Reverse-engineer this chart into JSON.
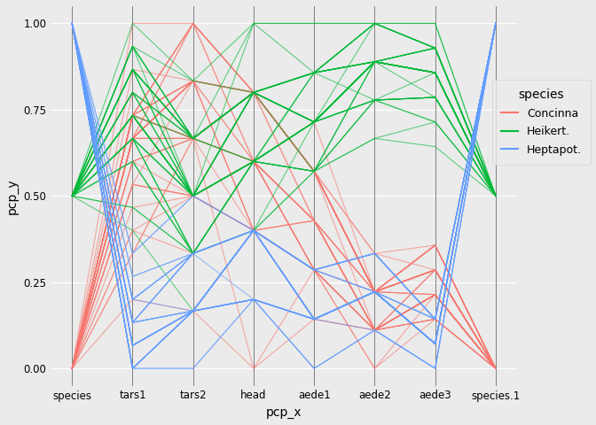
{
  "columns": [
    "species",
    "tars1",
    "tars2",
    "head",
    "aede1",
    "aede2",
    "aede3",
    "species.1"
  ],
  "species_colors": {
    "Concinna": "#F8766D",
    "Heikert.": "#00BA38",
    "Heptapot.": "#619CFF"
  },
  "species_legend": [
    "Concinna",
    "Heikert.",
    "Heptapot."
  ],
  "xlabel": "pcp_x",
  "ylabel": "pcp_y",
  "ylim": [
    -0.05,
    1.05
  ],
  "background_color": "#EBEBEB",
  "grid_color": "white",
  "alpha": 0.6,
  "linewidth": 0.8,
  "flea_data": [
    [
      "Concinna",
      131,
      53,
      33,
      50,
      14,
      18
    ],
    [
      "Concinna",
      123,
      50,
      30,
      49,
      14,
      16
    ],
    [
      "Concinna",
      125,
      53,
      30,
      50,
      13,
      17
    ],
    [
      "Concinna",
      131,
      55,
      34,
      52,
      15,
      18
    ],
    [
      "Concinna",
      135,
      55,
      34,
      53,
      15,
      18
    ],
    [
      "Concinna",
      131,
      53,
      34,
      51,
      14,
      17
    ],
    [
      "Concinna",
      130,
      55,
      33,
      50,
      14,
      16
    ],
    [
      "Concinna",
      125,
      53,
      32,
      51,
      14,
      17
    ],
    [
      "Concinna",
      133,
      54,
      34,
      52,
      16,
      19
    ],
    [
      "Concinna",
      131,
      53,
      34,
      52,
      15,
      19
    ],
    [
      "Concinna",
      132,
      53,
      34,
      52,
      15,
      19
    ],
    [
      "Concinna",
      128,
      52,
      32,
      51,
      15,
      18
    ],
    [
      "Concinna",
      130,
      55,
      33,
      51,
      14,
      18
    ],
    [
      "Concinna",
      131,
      54,
      34,
      52,
      15,
      19
    ],
    [
      "Concinna",
      127,
      52,
      33,
      51,
      14,
      17
    ],
    [
      "Concinna",
      131,
      55,
      34,
      52,
      15,
      19
    ],
    [
      "Concinna",
      129,
      53,
      33,
      50,
      15,
      17
    ],
    [
      "Concinna",
      128,
      52,
      32,
      50,
      14,
      16
    ],
    [
      "Concinna",
      126,
      51,
      32,
      50,
      13,
      16
    ],
    [
      "Concinna",
      130,
      54,
      34,
      52,
      15,
      18
    ],
    [
      "Concinna",
      130,
      54,
      34,
      52,
      14,
      18
    ],
    [
      "Concinna",
      131,
      53,
      34,
      52,
      15,
      18
    ],
    [
      "Concinna",
      129,
      53,
      33,
      51,
      14,
      17
    ],
    [
      "Concinna",
      128,
      54,
      32,
      49,
      14,
      16
    ],
    [
      "Concinna",
      130,
      54,
      32,
      50,
      14,
      17
    ],
    [
      "Concinna",
      130,
      54,
      32,
      51,
      14,
      17
    ],
    [
      "Concinna",
      131,
      55,
      34,
      52,
      15,
      18
    ],
    [
      "Concinna",
      129,
      53,
      33,
      51,
      14,
      17
    ],
    [
      "Concinna",
      130,
      53,
      33,
      51,
      15,
      17
    ],
    [
      "Concinna",
      130,
      54,
      34,
      51,
      15,
      18
    ],
    [
      "Concinna",
      130,
      54,
      34,
      52,
      15,
      18
    ],
    [
      "Concinna",
      130,
      53,
      34,
      52,
      15,
      18
    ],
    [
      "Concinna",
      131,
      54,
      34,
      52,
      16,
      18
    ],
    [
      "Concinna",
      130,
      54,
      33,
      51,
      15,
      17
    ],
    [
      "Concinna",
      131,
      54,
      34,
      52,
      15,
      19
    ],
    [
      "Concinna",
      130,
      53,
      34,
      52,
      15,
      18
    ],
    [
      "Concinna",
      131,
      55,
      34,
      52,
      15,
      19
    ],
    [
      "Concinna",
      129,
      52,
      33,
      50,
      14,
      17
    ],
    [
      "Concinna",
      128,
      52,
      32,
      50,
      14,
      17
    ],
    [
      "Concinna",
      131,
      53,
      34,
      52,
      15,
      19
    ],
    [
      "Concinna",
      126,
      52,
      32,
      50,
      14,
      17
    ],
    [
      "Concinna",
      130,
      54,
      33,
      50,
      14,
      17
    ],
    [
      "Concinna",
      131,
      54,
      34,
      52,
      15,
      18
    ],
    [
      "Concinna",
      131,
      53,
      34,
      52,
      15,
      18
    ],
    [
      "Heikert.",
      134,
      53,
      34,
      54,
      21,
      26
    ],
    [
      "Heikert.",
      127,
      51,
      33,
      52,
      19,
      23
    ],
    [
      "Heikert.",
      130,
      52,
      33,
      54,
      20,
      26
    ],
    [
      "Heikert.",
      134,
      53,
      35,
      54,
      22,
      27
    ],
    [
      "Heikert.",
      133,
      52,
      34,
      54,
      21,
      27
    ],
    [
      "Heikert.",
      131,
      52,
      34,
      52,
      21,
      25
    ],
    [
      "Heikert.",
      131,
      52,
      34,
      53,
      21,
      26
    ],
    [
      "Heikert.",
      134,
      54,
      34,
      54,
      21,
      27
    ],
    [
      "Heikert.",
      131,
      52,
      33,
      53,
      21,
      26
    ],
    [
      "Heikert.",
      129,
      51,
      33,
      52,
      20,
      25
    ],
    [
      "Heikert.",
      130,
      51,
      32,
      53,
      20,
      25
    ],
    [
      "Heikert.",
      126,
      50,
      32,
      52,
      19,
      24
    ],
    [
      "Heikert.",
      131,
      52,
      33,
      54,
      21,
      26
    ],
    [
      "Heikert.",
      129,
      51,
      33,
      52,
      20,
      24
    ],
    [
      "Heikert.",
      127,
      51,
      32,
      52,
      20,
      24
    ],
    [
      "Heikert.",
      129,
      51,
      33,
      53,
      20,
      25
    ],
    [
      "Heikert.",
      132,
      52,
      33,
      53,
      21,
      26
    ],
    [
      "Heikert.",
      130,
      51,
      33,
      53,
      20,
      25
    ],
    [
      "Heikert.",
      133,
      53,
      34,
      53,
      22,
      27
    ],
    [
      "Heikert.",
      132,
      52,
      34,
      53,
      21,
      26
    ],
    [
      "Heikert.",
      131,
      52,
      33,
      53,
      21,
      26
    ],
    [
      "Heikert.",
      131,
      53,
      33,
      54,
      21,
      26
    ],
    [
      "Heikert.",
      133,
      53,
      34,
      54,
      21,
      27
    ],
    [
      "Heikert.",
      130,
      51,
      33,
      53,
      20,
      25
    ],
    [
      "Heikert.",
      133,
      53,
      34,
      54,
      22,
      27
    ],
    [
      "Heikert.",
      134,
      52,
      35,
      55,
      22,
      28
    ],
    [
      "Heikert.",
      131,
      52,
      33,
      52,
      21,
      26
    ],
    [
      "Heikert.",
      133,
      53,
      34,
      53,
      21,
      27
    ],
    [
      "Heikert.",
      130,
      52,
      33,
      53,
      21,
      26
    ],
    [
      "Heikert.",
      131,
      52,
      34,
      53,
      21,
      26
    ],
    [
      "Heikert.",
      132,
      52,
      33,
      53,
      21,
      26
    ],
    [
      "Heikert.",
      131,
      52,
      34,
      53,
      21,
      26
    ],
    [
      "Heikert.",
      132,
      53,
      33,
      53,
      21,
      26
    ],
    [
      "Heikert.",
      132,
      53,
      34,
      54,
      22,
      27
    ],
    [
      "Heikert.",
      133,
      53,
      34,
      54,
      22,
      27
    ],
    [
      "Heikert.",
      130,
      52,
      33,
      53,
      21,
      26
    ],
    [
      "Heikert.",
      132,
      53,
      34,
      53,
      21,
      26
    ],
    [
      "Heikert.",
      131,
      52,
      33,
      53,
      21,
      26
    ],
    [
      "Heikert.",
      134,
      53,
      34,
      54,
      22,
      27
    ],
    [
      "Heikert.",
      130,
      52,
      33,
      53,
      20,
      25
    ],
    [
      "Heikert.",
      133,
      53,
      34,
      54,
      21,
      27
    ],
    [
      "Heikert.",
      135,
      54,
      35,
      55,
      22,
      28
    ],
    [
      "Heikert.",
      134,
      53,
      34,
      54,
      22,
      27
    ],
    [
      "Heikert.",
      133,
      52,
      34,
      53,
      21,
      26
    ],
    [
      "Heikert.",
      131,
      52,
      33,
      52,
      21,
      26
    ],
    [
      "Heikert.",
      133,
      53,
      34,
      54,
      21,
      27
    ],
    [
      "Heikert.",
      133,
      52,
      34,
      53,
      21,
      26
    ],
    [
      "Heptapot.",
      120,
      50,
      32,
      49,
      15,
      15
    ],
    [
      "Heptapot.",
      122,
      50,
      32,
      49,
      15,
      15
    ],
    [
      "Heptapot.",
      125,
      52,
      32,
      50,
      16,
      16
    ],
    [
      "Heptapot.",
      121,
      50,
      32,
      49,
      15,
      15
    ],
    [
      "Heptapot.",
      123,
      50,
      32,
      49,
      15,
      15
    ],
    [
      "Heptapot.",
      125,
      52,
      32,
      50,
      16,
      16
    ],
    [
      "Heptapot.",
      124,
      51,
      32,
      49,
      15,
      15
    ],
    [
      "Heptapot.",
      121,
      50,
      32,
      49,
      15,
      15
    ],
    [
      "Heptapot.",
      120,
      50,
      32,
      49,
      15,
      15
    ],
    [
      "Heptapot.",
      124,
      51,
      32,
      50,
      16,
      16
    ],
    [
      "Heptapot.",
      120,
      49,
      31,
      49,
      14,
      14
    ],
    [
      "Heptapot.",
      121,
      50,
      31,
      49,
      15,
      15
    ],
    [
      "Heptapot.",
      120,
      50,
      31,
      48,
      14,
      14
    ],
    [
      "Heptapot.",
      123,
      51,
      32,
      50,
      16,
      16
    ],
    [
      "Heptapot.",
      120,
      50,
      31,
      49,
      15,
      15
    ],
    [
      "Heptapot.",
      121,
      50,
      31,
      49,
      15,
      15
    ],
    [
      "Heptapot.",
      123,
      51,
      32,
      50,
      16,
      16
    ],
    [
      "Heptapot.",
      120,
      50,
      32,
      49,
      15,
      15
    ],
    [
      "Heptapot.",
      121,
      50,
      31,
      49,
      15,
      15
    ],
    [
      "Heptapot.",
      122,
      51,
      32,
      50,
      15,
      16
    ],
    [
      "Heptapot.",
      122,
      50,
      31,
      49,
      15,
      15
    ],
    [
      "Heptapot.",
      123,
      51,
      32,
      50,
      15,
      16
    ],
    [
      "Heptapot.",
      120,
      50,
      31,
      48,
      14,
      14
    ],
    [
      "Heptapot.",
      121,
      50,
      32,
      49,
      15,
      15
    ],
    [
      "Heptapot.",
      122,
      50,
      31,
      49,
      15,
      15
    ],
    [
      "Heptapot.",
      122,
      51,
      31,
      49,
      15,
      15
    ],
    [
      "Heptapot.",
      122,
      51,
      32,
      49,
      15,
      16
    ],
    [
      "Heptapot.",
      122,
      50,
      32,
      50,
      15,
      16
    ],
    [
      "Heptapot.",
      121,
      50,
      31,
      49,
      15,
      15
    ],
    [
      "Heptapot.",
      120,
      49,
      31,
      48,
      14,
      14
    ],
    [
      "Heptapot.",
      121,
      50,
      31,
      49,
      15,
      15
    ],
    [
      "Heptapot.",
      122,
      51,
      32,
      50,
      16,
      16
    ],
    [
      "Heptapot.",
      120,
      50,
      31,
      49,
      15,
      15
    ],
    [
      "Heptapot.",
      121,
      50,
      32,
      49,
      15,
      15
    ],
    [
      "Heptapot.",
      123,
      51,
      32,
      50,
      16,
      16
    ]
  ]
}
